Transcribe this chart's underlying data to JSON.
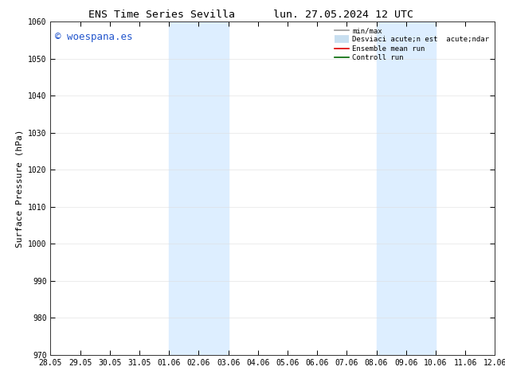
{
  "title_left": "ENS Time Series Sevilla",
  "title_right": "lun. 27.05.2024 12 UTC",
  "ylabel": "Surface Pressure (hPa)",
  "ylim": [
    970,
    1060
  ],
  "yticks": [
    970,
    980,
    990,
    1000,
    1010,
    1020,
    1030,
    1040,
    1050,
    1060
  ],
  "xtick_labels": [
    "28.05",
    "29.05",
    "30.05",
    "31.05",
    "01.06",
    "02.06",
    "03.06",
    "04.06",
    "05.06",
    "06.06",
    "07.06",
    "08.06",
    "09.06",
    "10.06",
    "11.06",
    "12.06"
  ],
  "xtick_positions": [
    0,
    1,
    2,
    3,
    4,
    5,
    6,
    7,
    8,
    9,
    10,
    11,
    12,
    13,
    14,
    15
  ],
  "shaded_regions": [
    {
      "x_start": 4,
      "x_end": 6,
      "color": "#ddeeff"
    },
    {
      "x_start": 11,
      "x_end": 13,
      "color": "#ddeeff"
    }
  ],
  "watermark_text": "© woespana.es",
  "watermark_color": "#2255cc",
  "legend_entries": [
    {
      "label": "min/max",
      "color": "#999999",
      "lw": 1.2
    },
    {
      "label": "Desviaci acute;n est  acute;ndar",
      "color": "#c8dff0",
      "lw": 7
    },
    {
      "label": "Ensemble mean run",
      "color": "#dd0000",
      "lw": 1.2
    },
    {
      "label": "Controll run",
      "color": "#006600",
      "lw": 1.2
    }
  ],
  "background_color": "#ffffff",
  "tick_fontsize": 7,
  "title_fontsize": 9.5,
  "ylabel_fontsize": 8,
  "watermark_fontsize": 9
}
